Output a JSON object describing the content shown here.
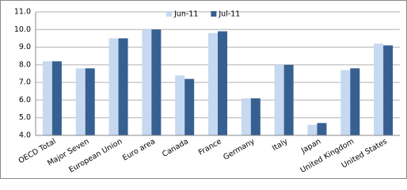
{
  "chart_data": {
    "type": "bar",
    "categories": [
      "OECD Total",
      "Major Seven",
      "European Union",
      "Euro area",
      "Canada",
      "France",
      "Germany",
      "Italy",
      "Japan",
      "United Kingdom",
      "United States"
    ],
    "series": [
      {
        "name": "Jun-11",
        "color": "#c6d9f1",
        "values": [
          8.2,
          7.8,
          9.5,
          10.0,
          7.4,
          9.8,
          6.1,
          8.0,
          4.6,
          7.7,
          9.2
        ]
      },
      {
        "name": "Jul-11",
        "color": "#376092",
        "values": [
          8.2,
          7.8,
          9.5,
          10.0,
          7.2,
          9.9,
          6.1,
          8.0,
          4.7,
          7.8,
          9.1
        ]
      }
    ],
    "ylim": [
      4,
      11
    ],
    "yticks": [
      {
        "value": 4,
        "label": "4.0"
      },
      {
        "value": 5,
        "label": "5.0"
      },
      {
        "value": 6,
        "label": "6.0"
      },
      {
        "value": 7,
        "label": "7.0"
      },
      {
        "value": 8,
        "label": "8.0"
      },
      {
        "value": 9,
        "label": "9.0"
      },
      {
        "value": 10,
        "label": "10.0"
      },
      {
        "value": 11,
        "label": "11.0"
      }
    ],
    "grid": true,
    "legend": "top"
  }
}
